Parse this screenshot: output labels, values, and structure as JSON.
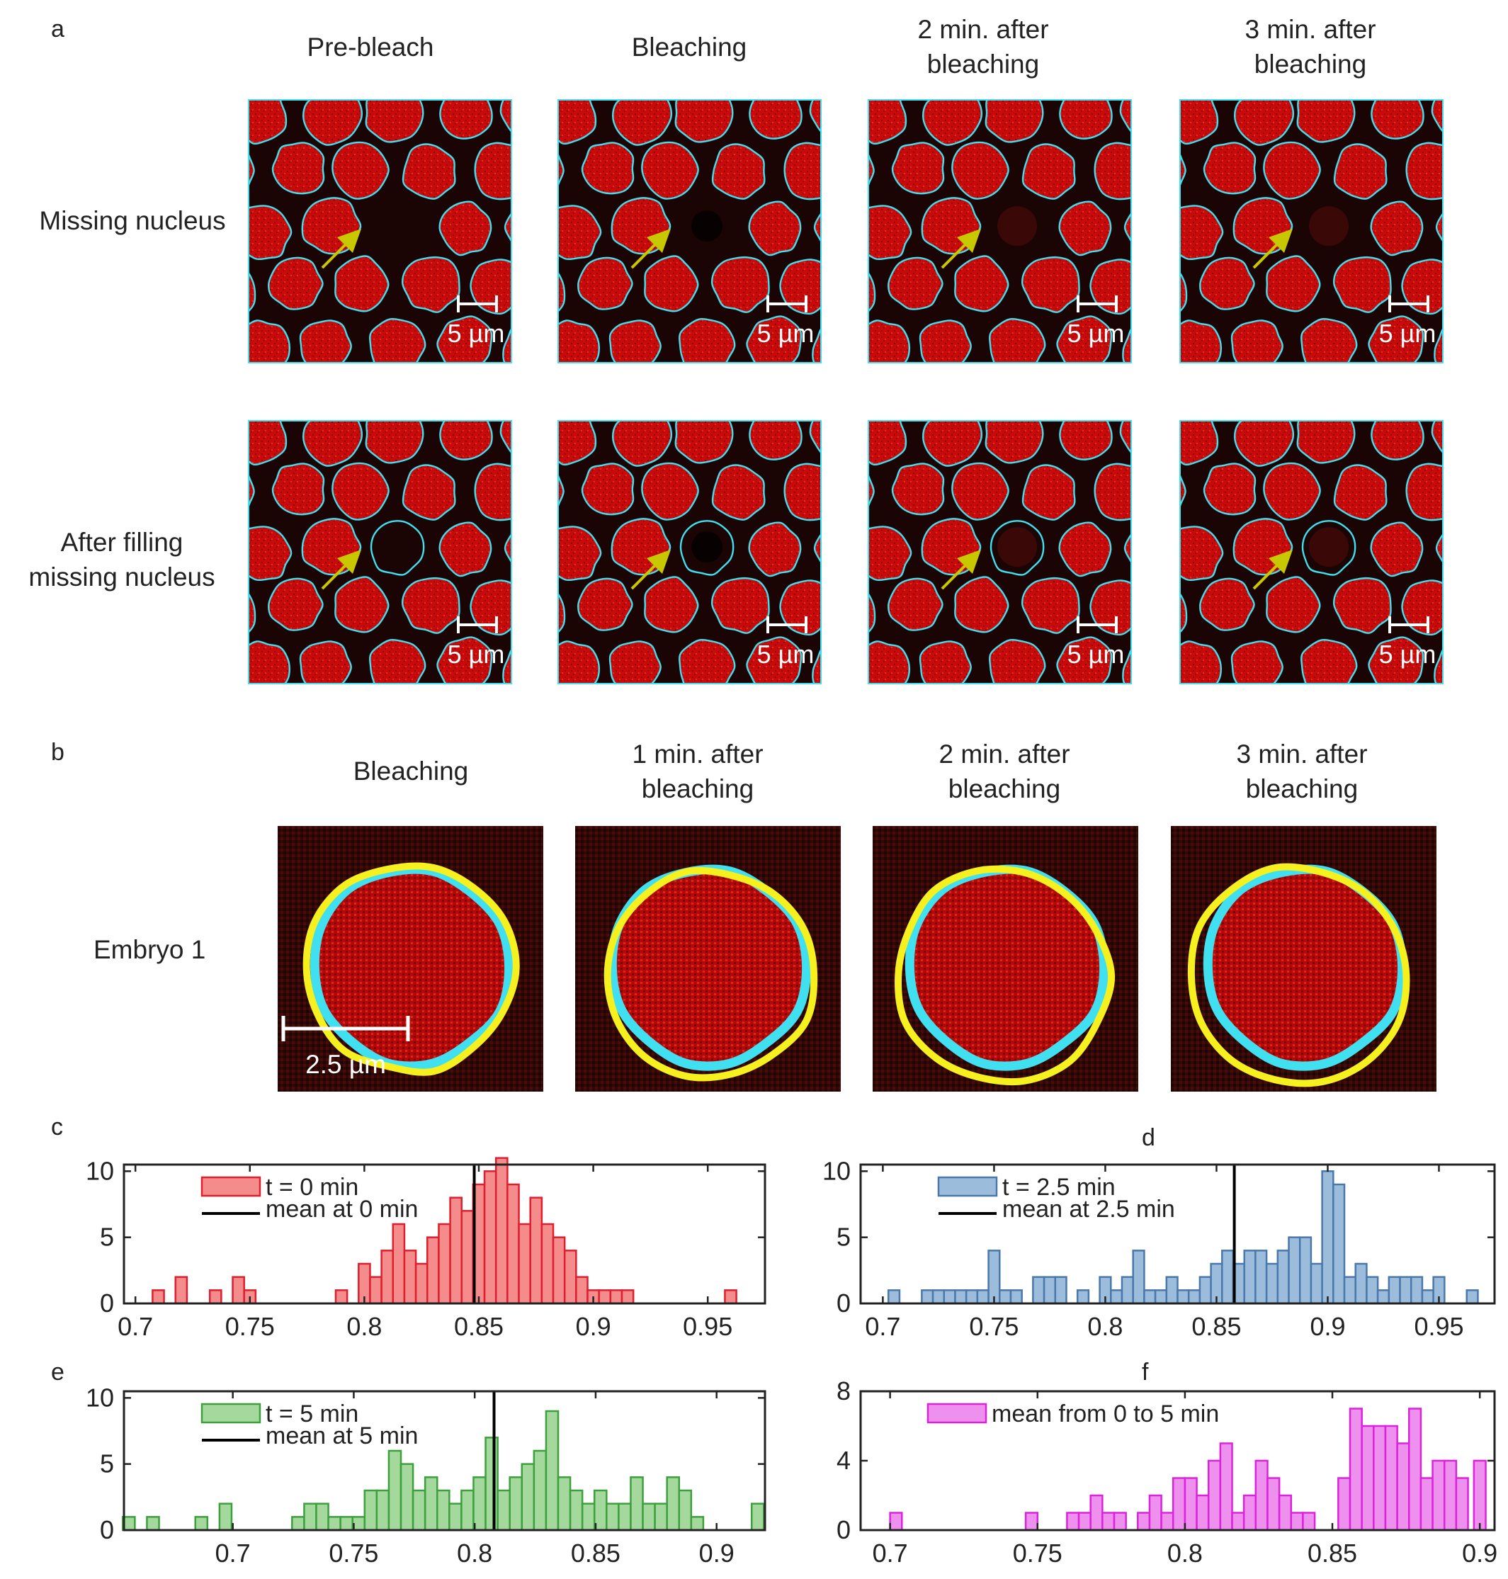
{
  "figure": {
    "panel_letters": {
      "a": "a",
      "b": "b",
      "c": "c",
      "d": "d",
      "e": "e",
      "f": "f"
    },
    "a": {
      "column_titles": [
        {
          "l1": "Pre-bleach",
          "l2": ""
        },
        {
          "l1": "Bleaching",
          "l2": ""
        },
        {
          "l1": "2 min. after",
          "l2": "bleaching"
        },
        {
          "l1": "3 min. after",
          "l2": "bleaching"
        }
      ],
      "row_labels": [
        {
          "l1": "Missing nucleus",
          "l2": ""
        },
        {
          "l1": "After filling",
          "l2": "missing nucleus"
        }
      ],
      "scale_label": "5 µm"
    },
    "b": {
      "column_titles": [
        {
          "l1": "Bleaching",
          "l2": ""
        },
        {
          "l1": "1 min. after",
          "l2": "bleaching"
        },
        {
          "l1": "2 min. after",
          "l2": "bleaching"
        },
        {
          "l1": "3 min. after",
          "l2": "bleaching"
        }
      ],
      "row_label": "Embryo 1",
      "scale_label": "2.5 µm"
    },
    "colors": {
      "nucleus_red": "#c80a0a",
      "outline_cyan": "#40e0f0",
      "arrow_yellow": "#c8c800",
      "contour_yellow": "#f5f01e",
      "hist_red": "#f48c8c",
      "hist_red_edge": "#e01e2e",
      "hist_blue": "#9cbcdc",
      "hist_blue_edge": "#4a78aa",
      "hist_green": "#a4d89c",
      "hist_green_edge": "#3ca03c",
      "hist_magenta": "#ee90ee",
      "hist_magenta_edge": "#dd22dd"
    }
  },
  "chart_data": [
    {
      "id": "c",
      "type": "bar",
      "title": "",
      "xlabel": "",
      "ylabel": "",
      "xlim": [
        0.695,
        0.975
      ],
      "ylim": [
        0,
        10.5
      ],
      "xticks": [
        0.7,
        0.75,
        0.8,
        0.85,
        0.9,
        0.95
      ],
      "xtick_labels": [
        "0.7",
        "0.75",
        "0.8",
        "0.85",
        "0.9",
        "0.95"
      ],
      "yticks": [
        0,
        5,
        10
      ],
      "ytick_labels": [
        "0",
        "5",
        "10"
      ],
      "bin_width": 0.005,
      "bin_centers": [
        0.71,
        0.72,
        0.735,
        0.745,
        0.75,
        0.79,
        0.8,
        0.805,
        0.81,
        0.815,
        0.82,
        0.825,
        0.83,
        0.835,
        0.84,
        0.845,
        0.85,
        0.855,
        0.86,
        0.865,
        0.87,
        0.875,
        0.88,
        0.885,
        0.89,
        0.895,
        0.9,
        0.905,
        0.91,
        0.915,
        0.96
      ],
      "values": [
        1,
        2,
        1,
        2,
        1,
        1,
        3,
        2,
        4,
        6,
        4,
        3,
        5,
        6,
        8,
        7,
        9,
        10,
        11,
        9,
        6,
        8,
        6,
        5,
        4,
        2,
        1,
        1,
        1,
        1,
        1
      ],
      "mean": 0.848,
      "legend": [
        "t = 0 min",
        "mean at 0 min"
      ]
    },
    {
      "id": "d",
      "type": "bar",
      "title": "",
      "xlabel": "",
      "ylabel": "",
      "xlim": [
        0.69,
        0.975
      ],
      "ylim": [
        0,
        10.5
      ],
      "xticks": [
        0.7,
        0.75,
        0.8,
        0.85,
        0.9,
        0.95
      ],
      "xtick_labels": [
        "0.7",
        "0.75",
        "0.8",
        "0.85",
        "0.9",
        "0.95"
      ],
      "yticks": [
        0,
        5,
        10
      ],
      "ytick_labels": [
        "0",
        "5",
        "10"
      ],
      "bin_width": 0.005,
      "bin_centers": [
        0.705,
        0.72,
        0.725,
        0.73,
        0.735,
        0.74,
        0.745,
        0.75,
        0.755,
        0.76,
        0.77,
        0.775,
        0.78,
        0.79,
        0.8,
        0.805,
        0.81,
        0.815,
        0.82,
        0.825,
        0.83,
        0.835,
        0.84,
        0.845,
        0.85,
        0.855,
        0.86,
        0.865,
        0.87,
        0.875,
        0.88,
        0.885,
        0.89,
        0.895,
        0.9,
        0.905,
        0.91,
        0.915,
        0.92,
        0.925,
        0.93,
        0.935,
        0.94,
        0.945,
        0.95,
        0.965
      ],
      "values": [
        1,
        1,
        1,
        1,
        1,
        1,
        1,
        4,
        1,
        1,
        2,
        2,
        2,
        1,
        2,
        1,
        2,
        4,
        1,
        1,
        2,
        1,
        1,
        2,
        3,
        4,
        3,
        4,
        4,
        3,
        4,
        5,
        5,
        3,
        10,
        9,
        2,
        3,
        2,
        1,
        2,
        2,
        2,
        1,
        2,
        1
      ],
      "mean": 0.858,
      "legend": [
        "t = 2.5 min",
        "mean at 2.5 min"
      ]
    },
    {
      "id": "e",
      "type": "bar",
      "title": "",
      "xlabel": "",
      "ylabel": "",
      "xlim": [
        0.655,
        0.92
      ],
      "ylim": [
        0,
        10.5
      ],
      "xticks": [
        0.7,
        0.75,
        0.8,
        0.85,
        0.9
      ],
      "xtick_labels": [
        "0.7",
        "0.75",
        "0.8",
        "0.85",
        "0.9"
      ],
      "yticks": [
        0,
        5,
        10
      ],
      "ytick_labels": [
        "0",
        "5",
        "10"
      ],
      "bin_width": 0.005,
      "bin_centers": [
        0.657,
        0.667,
        0.687,
        0.697,
        0.727,
        0.732,
        0.737,
        0.742,
        0.747,
        0.752,
        0.757,
        0.762,
        0.767,
        0.772,
        0.777,
        0.782,
        0.787,
        0.792,
        0.797,
        0.802,
        0.807,
        0.812,
        0.817,
        0.822,
        0.827,
        0.832,
        0.837,
        0.842,
        0.847,
        0.852,
        0.857,
        0.862,
        0.867,
        0.872,
        0.877,
        0.882,
        0.887,
        0.892,
        0.917
      ],
      "values": [
        1,
        1,
        1,
        2,
        1,
        2,
        2,
        1,
        1,
        1,
        3,
        3,
        6,
        5,
        3,
        4,
        3,
        2,
        3,
        4,
        7,
        3,
        4,
        5,
        6,
        9,
        4,
        3,
        2,
        3,
        2,
        2,
        4,
        2,
        2,
        4,
        3,
        1,
        2
      ],
      "mean": 0.808,
      "legend": [
        "t = 5 min",
        "mean at 5 min"
      ]
    },
    {
      "id": "f",
      "type": "bar",
      "title": "",
      "xlabel": "",
      "ylabel": "",
      "xlim": [
        0.69,
        0.905
      ],
      "ylim": [
        0,
        8
      ],
      "xticks": [
        0.7,
        0.75,
        0.8,
        0.85,
        0.9
      ],
      "xtick_labels": [
        "0.7",
        "0.75",
        "0.8",
        "0.85",
        "0.9"
      ],
      "yticks": [
        0,
        4,
        8
      ],
      "ytick_labels": [
        "0",
        "4",
        "8"
      ],
      "bin_width": 0.004,
      "bin_centers": [
        0.702,
        0.748,
        0.762,
        0.766,
        0.77,
        0.774,
        0.778,
        0.786,
        0.79,
        0.794,
        0.798,
        0.802,
        0.806,
        0.81,
        0.814,
        0.818,
        0.822,
        0.826,
        0.83,
        0.834,
        0.838,
        0.842,
        0.854,
        0.858,
        0.862,
        0.866,
        0.87,
        0.874,
        0.878,
        0.882,
        0.886,
        0.89,
        0.894,
        0.9
      ],
      "values": [
        1,
        1,
        1,
        1,
        2,
        1,
        1,
        1,
        2,
        1,
        3,
        3,
        2,
        4,
        5,
        1,
        2,
        4,
        3,
        2,
        1,
        1,
        3,
        7,
        6,
        6,
        6,
        5,
        7,
        3,
        4,
        4,
        3,
        4
      ],
      "mean": null,
      "legend": [
        "mean from 0 to 5 min"
      ]
    }
  ]
}
